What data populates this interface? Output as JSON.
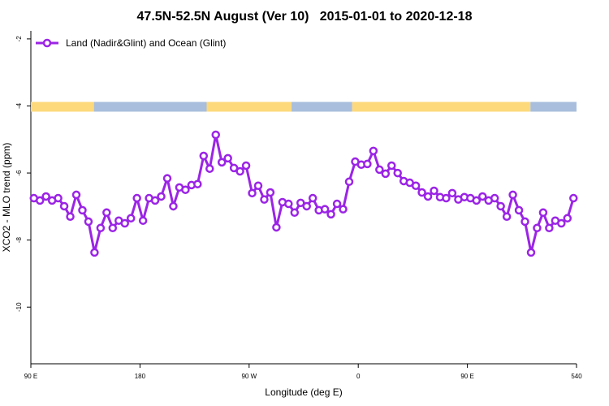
{
  "chart_data": {
    "type": "line",
    "title": "47.5N-52.5N August (Ver 10)   2015-01-01 to 2020-12-18",
    "x_label": "Longitude (deg E)",
    "y_label": "XCO2 - MLO trend (ppm)",
    "x": [
      92.5,
      97.5,
      102.5,
      107.5,
      112.5,
      117.5,
      122.5,
      127.5,
      132.5,
      137.5,
      142.5,
      147.5,
      152.5,
      157.5,
      162.5,
      167.5,
      172.5,
      177.5,
      182.5,
      187.5,
      192.5,
      197.5,
      202.5,
      207.5,
      212.5,
      217.5,
      222.5,
      227.5,
      232.5,
      237.5,
      242.5,
      247.5,
      252.5,
      257.5,
      262.5,
      267.5,
      272.5,
      277.5,
      282.5,
      287.5,
      292.5,
      297.5,
      302.5,
      307.5,
      312.5,
      317.5,
      322.5,
      327.5,
      332.5,
      337.5,
      342.5,
      347.5,
      352.5,
      357.5,
      362.5,
      367.5,
      372.5,
      377.5,
      382.5,
      387.5,
      392.5,
      397.5,
      402.5,
      407.5,
      412.5,
      417.5,
      422.5,
      427.5,
      432.5,
      437.5,
      442.5,
      447.5,
      452.5,
      457.5,
      462.5,
      467.5,
      472.5,
      477.5,
      482.5,
      487.5,
      492.5,
      497.5,
      502.5,
      507.5,
      512.5,
      517.5,
      522.5,
      527.5,
      532.5,
      537.5
    ],
    "series": [
      {
        "name": "Land (Nadir&Glint) and Ocean (Glint)",
        "color": "#9b24e6",
        "values": [
          -6.75,
          -6.82,
          -6.7,
          -6.82,
          -6.75,
          -6.99,
          -7.3,
          -6.65,
          -7.11,
          -7.45,
          -8.37,
          -7.64,
          -7.18,
          -7.64,
          -7.42,
          -7.5,
          -7.35,
          -6.75,
          -7.42,
          -6.75,
          -6.82,
          -6.7,
          -6.16,
          -6.99,
          -6.43,
          -6.5,
          -6.36,
          -6.33,
          -5.49,
          -5.87,
          -4.86,
          -5.68,
          -5.56,
          -5.85,
          -5.95,
          -5.78,
          -6.6,
          -6.38,
          -6.79,
          -6.58,
          -7.62,
          -6.87,
          -6.92,
          -7.18,
          -6.89,
          -6.99,
          -6.75,
          -7.11,
          -7.08,
          -7.23,
          -6.92,
          -7.08,
          -6.26,
          -5.66,
          -5.75,
          -5.73,
          -5.34,
          -5.9,
          -6.02,
          -5.78,
          -6.0,
          -6.24,
          -6.29,
          -6.38,
          -6.58,
          -6.7,
          -6.53,
          -6.72,
          -6.75,
          -6.6,
          -6.79,
          -6.72,
          -6.75,
          -6.82,
          -6.7,
          -6.82,
          -6.75,
          -6.99,
          -7.3,
          -6.65,
          -7.11,
          -7.45,
          -8.37,
          -7.64,
          -7.18,
          -7.64,
          -7.42,
          -7.5,
          -7.35,
          -6.75
        ]
      }
    ],
    "surface_band": {
      "y": [
        -3.88,
        -4.17
      ],
      "segments": [
        {
          "start": 90,
          "end": 142,
          "color": "#fdd97c"
        },
        {
          "start": 142,
          "end": 235,
          "color": "#a9bedc"
        },
        {
          "start": 235,
          "end": 305,
          "color": "#fdd97c"
        },
        {
          "start": 305,
          "end": 355,
          "color": "#a9bedc"
        },
        {
          "start": 355,
          "end": 502,
          "color": "#fdd97c"
        },
        {
          "start": 502,
          "end": 540,
          "color": "#a9bedc"
        }
      ]
    },
    "xlim": [
      90,
      540
    ],
    "xticks": [
      {
        "value": 90,
        "label": "90 E"
      },
      180,
      {
        "value": 270,
        "label": "90 W"
      },
      {
        "value": 360,
        "label": "0"
      },
      {
        "value": 450,
        "label": "90 E"
      },
      540
    ],
    "ylim": [
      -11.69,
      -1.76
    ],
    "yticks": [
      -2,
      -4,
      -6,
      -8,
      -10
    ],
    "legend": "top-left"
  }
}
